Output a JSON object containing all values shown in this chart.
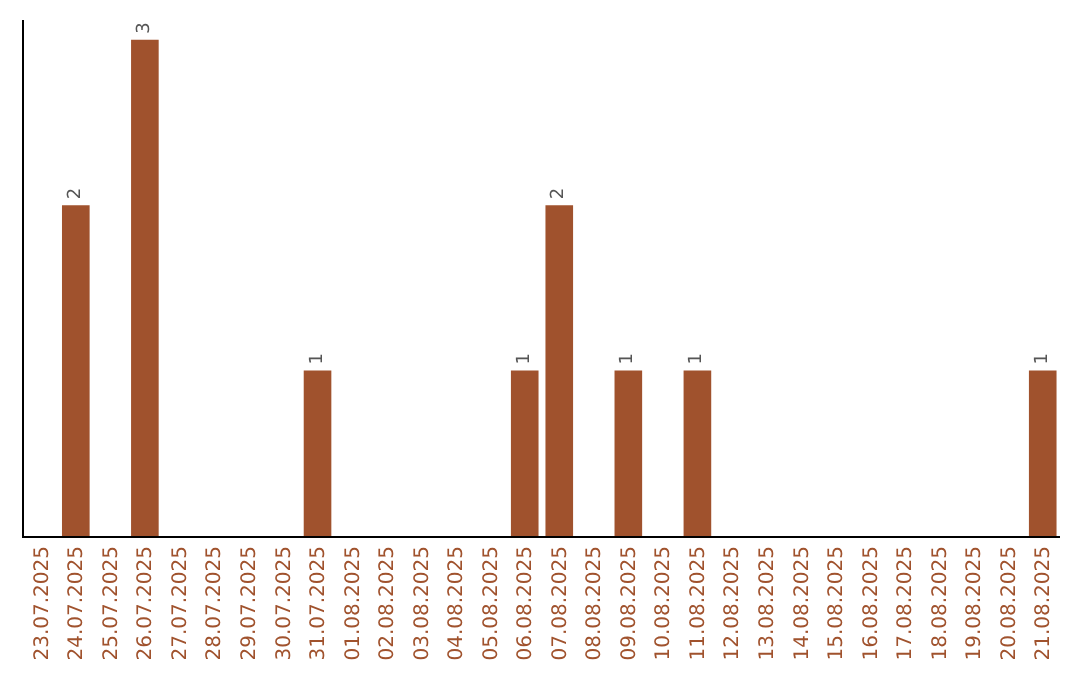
{
  "chart_data": {
    "type": "bar",
    "categories": [
      "23.07.2025",
      "24.07.2025",
      "25.07.2025",
      "26.07.2025",
      "27.07.2025",
      "28.07.2025",
      "29.07.2025",
      "30.07.2025",
      "31.07.2025",
      "01.08.2025",
      "02.08.2025",
      "03.08.2025",
      "04.08.2025",
      "05.08.2025",
      "06.08.2025",
      "07.08.2025",
      "08.08.2025",
      "09.08.2025",
      "10.08.2025",
      "11.08.2025",
      "12.08.2025",
      "13.08.2025",
      "14.08.2025",
      "15.08.2025",
      "16.08.2025",
      "17.08.2025",
      "18.08.2025",
      "19.08.2025",
      "20.08.2025",
      "21.08.2025"
    ],
    "values": [
      0,
      2,
      0,
      3,
      0,
      0,
      0,
      0,
      1,
      0,
      0,
      0,
      0,
      0,
      1,
      2,
      0,
      1,
      0,
      1,
      0,
      0,
      0,
      0,
      0,
      0,
      0,
      0,
      0,
      1
    ],
    "value_labels": [
      null,
      "2",
      null,
      "3",
      null,
      null,
      null,
      null,
      "1",
      null,
      null,
      null,
      null,
      null,
      "1",
      "2",
      null,
      "1",
      null,
      "1",
      null,
      null,
      null,
      null,
      null,
      null,
      null,
      null,
      null,
      "1"
    ],
    "color": "#a0522d",
    "tick_labels": "x",
    "legend": false
  }
}
